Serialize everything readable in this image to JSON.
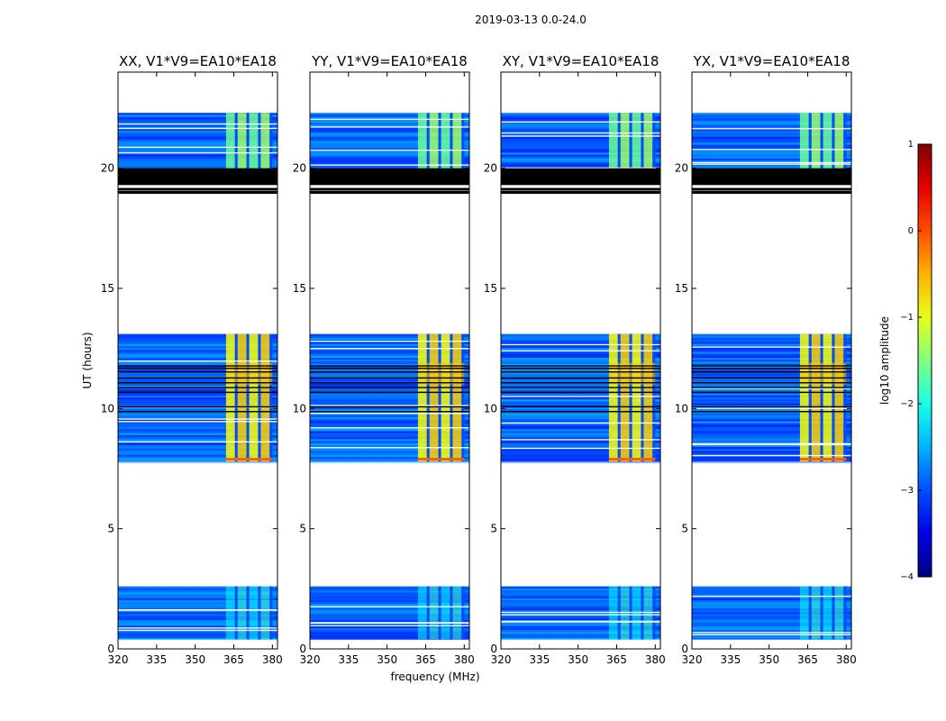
{
  "figure_title": "2019-03-13 0.0-24.0",
  "chart_data": {
    "type": "heatmap",
    "title": "2019-03-13 0.0-24.0",
    "xlabel": "frequency (MHz)",
    "ylabel": "UT (hours)",
    "xlim": [
      320,
      382
    ],
    "ylim": [
      0,
      24
    ],
    "x_ticks": [
      320,
      335,
      350,
      365,
      380
    ],
    "y_ticks": [
      0,
      5,
      10,
      15,
      20
    ],
    "panels": [
      {
        "pol": "XX",
        "title": "XX, V1*V9=EA10*EA18"
      },
      {
        "pol": "YY",
        "title": "YY, V1*V9=EA10*EA18"
      },
      {
        "pol": "XY",
        "title": "XY, V1*V9=EA10*EA18"
      },
      {
        "pol": "YX",
        "title": "YX, V1*V9=EA10*EA18"
      }
    ],
    "data_time_ranges_hours": [
      [
        0.4,
        2.6
      ],
      [
        7.8,
        13.1
      ],
      [
        19.8,
        22.3
      ]
    ],
    "flagged_black_rows_hours": [
      [
        19.3,
        20.0
      ],
      [
        18.95,
        19.05
      ],
      [
        19.12,
        19.18
      ]
    ],
    "bright_channel_range_mhz": [
      362,
      380
    ],
    "colorbar": {
      "label": "log10 amplitude",
      "range": [
        -4,
        1
      ],
      "ticks": [
        -4,
        -3,
        -2,
        -1,
        0,
        1
      ],
      "tick_labels": [
        "−4",
        "−3",
        "−2",
        "−1",
        "0",
        "1"
      ],
      "colormap": "jet"
    }
  }
}
